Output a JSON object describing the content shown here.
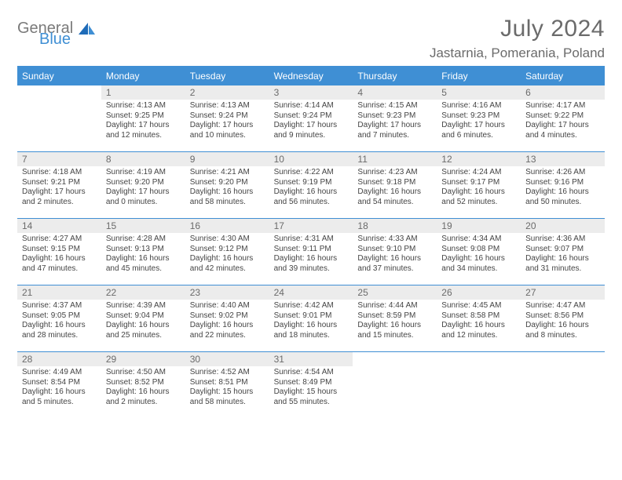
{
  "brand": {
    "part1": "General",
    "part2": "Blue"
  },
  "title": "July 2024",
  "location": "Jastarnia, Pomerania, Poland",
  "colors": {
    "accent": "#3f8fd4",
    "header_text": "#ffffff",
    "daynum_bg": "#ececec",
    "text_muted": "#6b6b6b",
    "body_text": "#444444",
    "background": "#ffffff"
  },
  "dayNames": [
    "Sunday",
    "Monday",
    "Tuesday",
    "Wednesday",
    "Thursday",
    "Friday",
    "Saturday"
  ],
  "startOffset": 1,
  "daysInMonth": 31,
  "days": {
    "1": {
      "sunrise": "4:13 AM",
      "sunset": "9:25 PM",
      "daylight": "17 hours and 12 minutes."
    },
    "2": {
      "sunrise": "4:13 AM",
      "sunset": "9:24 PM",
      "daylight": "17 hours and 10 minutes."
    },
    "3": {
      "sunrise": "4:14 AM",
      "sunset": "9:24 PM",
      "daylight": "17 hours and 9 minutes."
    },
    "4": {
      "sunrise": "4:15 AM",
      "sunset": "9:23 PM",
      "daylight": "17 hours and 7 minutes."
    },
    "5": {
      "sunrise": "4:16 AM",
      "sunset": "9:23 PM",
      "daylight": "17 hours and 6 minutes."
    },
    "6": {
      "sunrise": "4:17 AM",
      "sunset": "9:22 PM",
      "daylight": "17 hours and 4 minutes."
    },
    "7": {
      "sunrise": "4:18 AM",
      "sunset": "9:21 PM",
      "daylight": "17 hours and 2 minutes."
    },
    "8": {
      "sunrise": "4:19 AM",
      "sunset": "9:20 PM",
      "daylight": "17 hours and 0 minutes."
    },
    "9": {
      "sunrise": "4:21 AM",
      "sunset": "9:20 PM",
      "daylight": "16 hours and 58 minutes."
    },
    "10": {
      "sunrise": "4:22 AM",
      "sunset": "9:19 PM",
      "daylight": "16 hours and 56 minutes."
    },
    "11": {
      "sunrise": "4:23 AM",
      "sunset": "9:18 PM",
      "daylight": "16 hours and 54 minutes."
    },
    "12": {
      "sunrise": "4:24 AM",
      "sunset": "9:17 PM",
      "daylight": "16 hours and 52 minutes."
    },
    "13": {
      "sunrise": "4:26 AM",
      "sunset": "9:16 PM",
      "daylight": "16 hours and 50 minutes."
    },
    "14": {
      "sunrise": "4:27 AM",
      "sunset": "9:15 PM",
      "daylight": "16 hours and 47 minutes."
    },
    "15": {
      "sunrise": "4:28 AM",
      "sunset": "9:13 PM",
      "daylight": "16 hours and 45 minutes."
    },
    "16": {
      "sunrise": "4:30 AM",
      "sunset": "9:12 PM",
      "daylight": "16 hours and 42 minutes."
    },
    "17": {
      "sunrise": "4:31 AM",
      "sunset": "9:11 PM",
      "daylight": "16 hours and 39 minutes."
    },
    "18": {
      "sunrise": "4:33 AM",
      "sunset": "9:10 PM",
      "daylight": "16 hours and 37 minutes."
    },
    "19": {
      "sunrise": "4:34 AM",
      "sunset": "9:08 PM",
      "daylight": "16 hours and 34 minutes."
    },
    "20": {
      "sunrise": "4:36 AM",
      "sunset": "9:07 PM",
      "daylight": "16 hours and 31 minutes."
    },
    "21": {
      "sunrise": "4:37 AM",
      "sunset": "9:05 PM",
      "daylight": "16 hours and 28 minutes."
    },
    "22": {
      "sunrise": "4:39 AM",
      "sunset": "9:04 PM",
      "daylight": "16 hours and 25 minutes."
    },
    "23": {
      "sunrise": "4:40 AM",
      "sunset": "9:02 PM",
      "daylight": "16 hours and 22 minutes."
    },
    "24": {
      "sunrise": "4:42 AM",
      "sunset": "9:01 PM",
      "daylight": "16 hours and 18 minutes."
    },
    "25": {
      "sunrise": "4:44 AM",
      "sunset": "8:59 PM",
      "daylight": "16 hours and 15 minutes."
    },
    "26": {
      "sunrise": "4:45 AM",
      "sunset": "8:58 PM",
      "daylight": "16 hours and 12 minutes."
    },
    "27": {
      "sunrise": "4:47 AM",
      "sunset": "8:56 PM",
      "daylight": "16 hours and 8 minutes."
    },
    "28": {
      "sunrise": "4:49 AM",
      "sunset": "8:54 PM",
      "daylight": "16 hours and 5 minutes."
    },
    "29": {
      "sunrise": "4:50 AM",
      "sunset": "8:52 PM",
      "daylight": "16 hours and 2 minutes."
    },
    "30": {
      "sunrise": "4:52 AM",
      "sunset": "8:51 PM",
      "daylight": "15 hours and 58 minutes."
    },
    "31": {
      "sunrise": "4:54 AM",
      "sunset": "8:49 PM",
      "daylight": "15 hours and 55 minutes."
    }
  },
  "labels": {
    "sunrise": "Sunrise: ",
    "sunset": "Sunset: ",
    "daylight": "Daylight: "
  }
}
